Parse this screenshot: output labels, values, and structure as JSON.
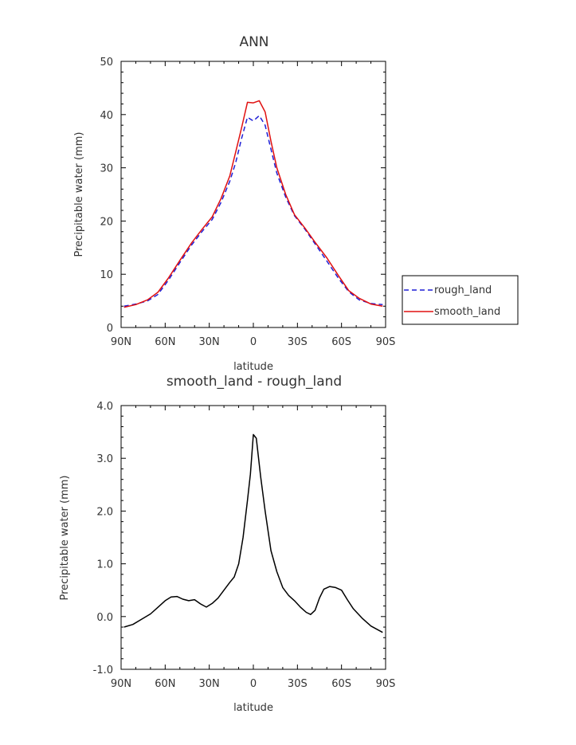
{
  "chart_data": [
    {
      "type": "line",
      "title": "ANN",
      "xlabel": "latitude",
      "ylabel": "Precipitable water (mm)",
      "xlim": [
        90,
        -90
      ],
      "ylim": [
        0,
        50
      ],
      "xticks": [
        90,
        60,
        30,
        0,
        -30,
        -60,
        -90
      ],
      "xtick_labels": [
        "90N",
        "60N",
        "30N",
        "0",
        "30S",
        "60S",
        "90S"
      ],
      "yticks": [
        0,
        10,
        20,
        30,
        40,
        50
      ],
      "ytick_labels": [
        "0",
        "10",
        "20",
        "30",
        "40",
        "50"
      ],
      "legend_position": "right",
      "x": [
        88,
        80,
        72,
        65,
        58,
        50,
        42,
        35,
        28,
        22,
        16,
        12,
        8,
        4,
        0,
        -4,
        -8,
        -12,
        -16,
        -22,
        -28,
        -35,
        -42,
        -50,
        -58,
        -65,
        -72,
        -80,
        -88
      ],
      "series": [
        {
          "name": "rough_land",
          "color": "#1f1fd6",
          "dash": "dashed",
          "values": [
            4.0,
            4.4,
            5.0,
            6.2,
            8.8,
            12.2,
            15.5,
            18.0,
            20.3,
            23.5,
            27.5,
            31.0,
            35.5,
            39.5,
            38.8,
            39.8,
            38.0,
            33.5,
            29.0,
            24.5,
            21.0,
            18.5,
            15.7,
            12.5,
            9.2,
            6.7,
            5.2,
            4.5,
            4.3
          ]
        },
        {
          "name": "smooth_land",
          "color": "#e01010",
          "dash": "solid",
          "values": [
            3.8,
            4.3,
            5.2,
            6.6,
            9.2,
            12.6,
            15.9,
            18.4,
            20.8,
            24.2,
            28.5,
            33.0,
            37.5,
            42.3,
            42.2,
            42.6,
            40.5,
            35.0,
            30.0,
            25.0,
            21.2,
            18.7,
            16.0,
            13.1,
            9.7,
            6.9,
            5.5,
            4.4,
            4.0
          ]
        }
      ]
    },
    {
      "type": "line",
      "title": "smooth_land - rough_land",
      "xlabel": "latitude",
      "ylabel": "Precipitable water (mm)",
      "xlim": [
        90,
        -90
      ],
      "ylim": [
        -1.0,
        4.0
      ],
      "xticks": [
        90,
        60,
        30,
        0,
        -30,
        -60,
        -90
      ],
      "xtick_labels": [
        "90N",
        "60N",
        "30N",
        "0",
        "30S",
        "60S",
        "90S"
      ],
      "yticks": [
        -1.0,
        0.0,
        1.0,
        2.0,
        3.0,
        4.0
      ],
      "ytick_labels": [
        "-1.0",
        "0.0",
        "1.0",
        "2.0",
        "3.0",
        "4.0"
      ],
      "x": [
        88,
        82,
        76,
        70,
        64,
        60,
        56,
        52,
        48,
        44,
        40,
        36,
        32,
        28,
        24,
        20,
        16,
        13,
        10,
        7,
        4,
        2,
        0,
        -2,
        -5,
        -8,
        -12,
        -16,
        -20,
        -24,
        -28,
        -32,
        -36,
        -39,
        -42,
        -45,
        -48,
        -52,
        -56,
        -60,
        -64,
        -68,
        -74,
        -80,
        -88
      ],
      "series": [
        {
          "color": "#000000",
          "values": [
            -0.2,
            -0.15,
            -0.05,
            0.05,
            0.2,
            0.3,
            0.37,
            0.38,
            0.33,
            0.3,
            0.32,
            0.24,
            0.18,
            0.25,
            0.35,
            0.5,
            0.65,
            0.75,
            1.0,
            1.5,
            2.2,
            2.7,
            3.45,
            3.38,
            2.65,
            2.0,
            1.25,
            0.85,
            0.55,
            0.4,
            0.3,
            0.18,
            0.08,
            0.04,
            0.12,
            0.35,
            0.52,
            0.57,
            0.55,
            0.5,
            0.32,
            0.15,
            -0.03,
            -0.18,
            -0.3
          ]
        }
      ]
    }
  ]
}
